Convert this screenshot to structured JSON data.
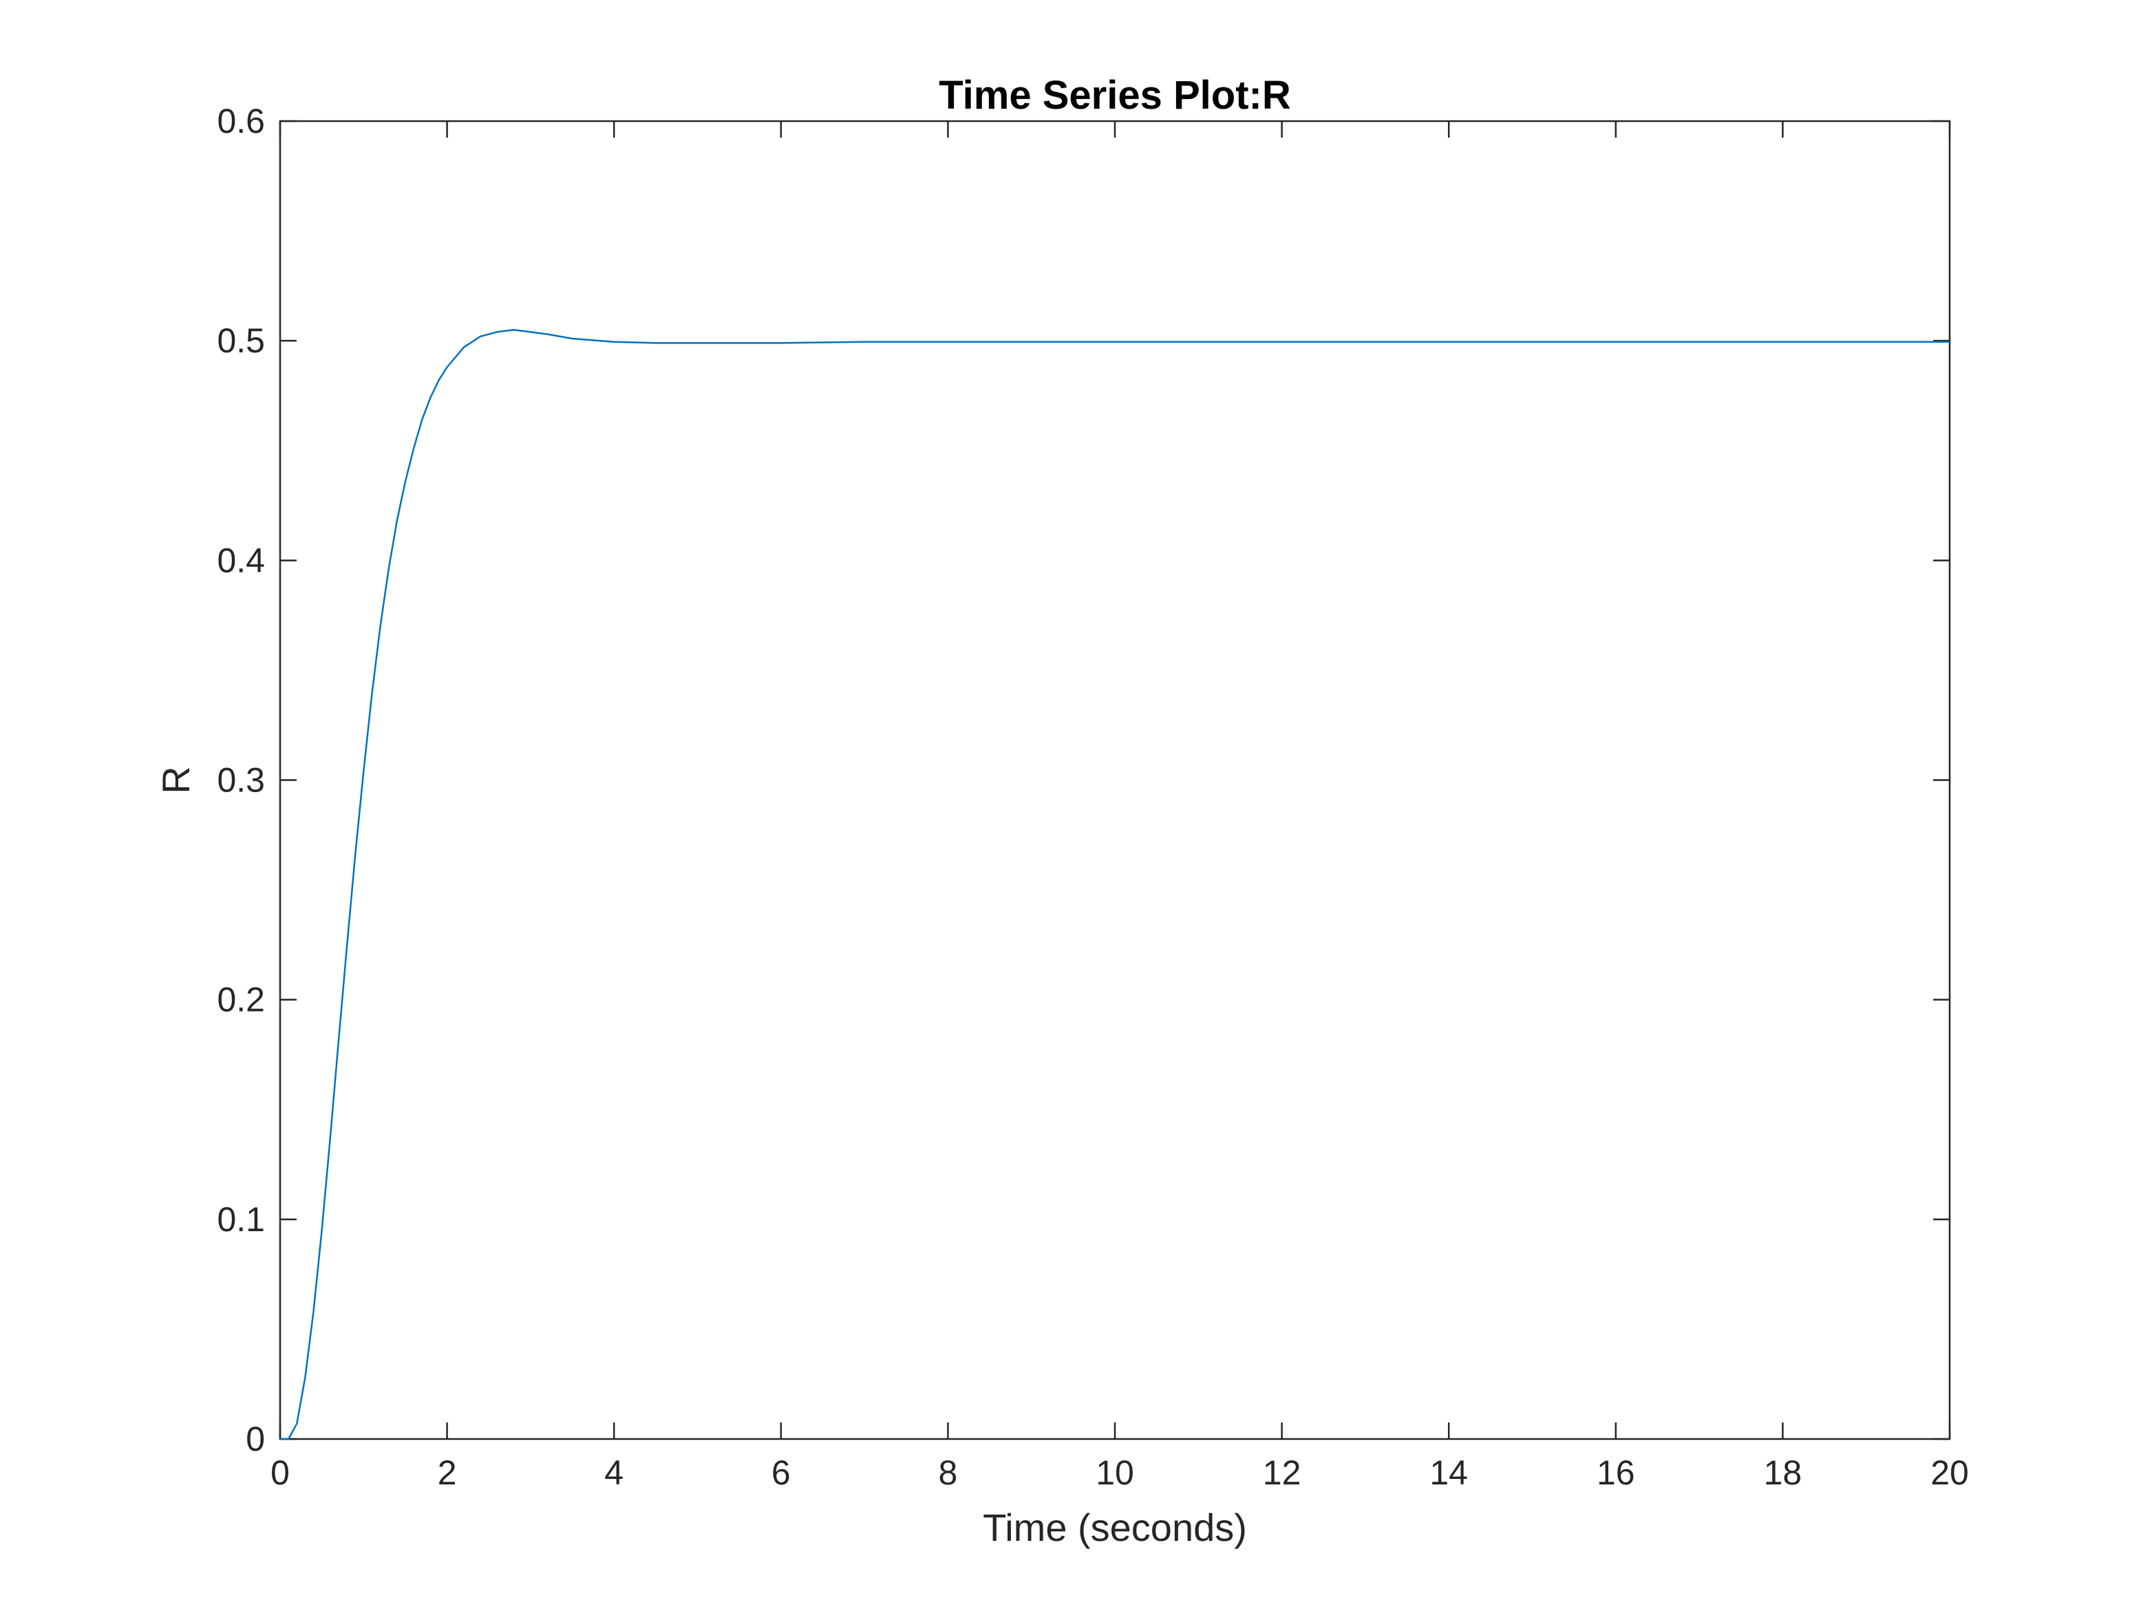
{
  "chart_data": {
    "type": "line",
    "title": "Time Series Plot:R",
    "xlabel": "Time (seconds)",
    "ylabel": "R",
    "xlim": [
      0,
      20
    ],
    "ylim": [
      0,
      0.6
    ],
    "x_ticks": [
      0,
      2,
      4,
      6,
      8,
      10,
      12,
      14,
      16,
      18,
      20
    ],
    "x_tick_labels": [
      "0",
      "2",
      "4",
      "6",
      "8",
      "10",
      "12",
      "14",
      "16",
      "18",
      "20"
    ],
    "y_ticks": [
      0,
      0.1,
      0.2,
      0.3,
      0.4,
      0.5,
      0.6
    ],
    "y_tick_labels": [
      "0",
      "0.1",
      "0.2",
      "0.3",
      "0.4",
      "0.5",
      "0.6"
    ],
    "grid": false,
    "line_color": "#0072BD",
    "series": [
      {
        "x": [
          0,
          0.1,
          0.2,
          0.3,
          0.4,
          0.5,
          0.6,
          0.7,
          0.8,
          0.9,
          1.0,
          1.1,
          1.2,
          1.3,
          1.4,
          1.5,
          1.6,
          1.7,
          1.8,
          1.9,
          2.0,
          2.2,
          2.4,
          2.6,
          2.8,
          3.0,
          3.2,
          3.5,
          4.0,
          4.5,
          5.0,
          5.5,
          6.0,
          7.0,
          8.0,
          10.0,
          12.0,
          14.0,
          16.0,
          18.0,
          20.0
        ],
        "values": [
          0,
          0.0,
          0.007,
          0.028,
          0.058,
          0.095,
          0.137,
          0.181,
          0.224,
          0.266,
          0.304,
          0.339,
          0.37,
          0.396,
          0.418,
          0.436,
          0.451,
          0.464,
          0.474,
          0.482,
          0.488,
          0.497,
          0.502,
          0.504,
          0.505,
          0.504,
          0.503,
          0.501,
          0.4995,
          0.499,
          0.499,
          0.499,
          0.499,
          0.4995,
          0.4995,
          0.4995,
          0.4995,
          0.4995,
          0.4995,
          0.4995,
          0.4995
        ]
      }
    ]
  }
}
